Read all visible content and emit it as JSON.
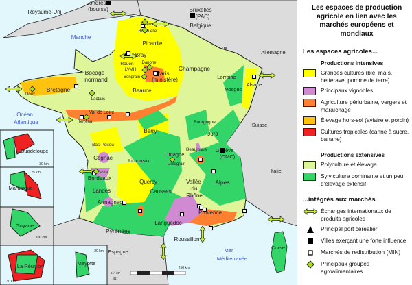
{
  "title": "Les espaces de production agricole en lien avec les marchés européens et mondiaux",
  "colors": {
    "sea": "#e2f7fb",
    "foreign_land": "#dcdcdc",
    "grandes_cultures": "#ffff00",
    "vignobles": "#d08ad2",
    "periurbaine": "#ff8030",
    "hors_sol": "#ffc20e",
    "tropicales": "#ee2222",
    "polyculture": "#dff59a",
    "sylviculture": "#33d468",
    "exchange_arrow": "#c8ef3a",
    "sea_label": "#3a55d0"
  },
  "legend": {
    "section1": "Les espaces agricoles...",
    "intensive_heading": "Productions intensives",
    "intensive": [
      {
        "label": "Grandes cultures (blé, maïs, betterave, pomme de terre)",
        "color": "#ffff00"
      },
      {
        "label": "Principaux vignobles",
        "color": "#d08ad2"
      },
      {
        "label": "Agriculture périurbaine, vergers et maraîchage",
        "color": "#ff8030"
      },
      {
        "label": "Élevage hors-sol (aviaire et porcin)",
        "color": "#ffc20e"
      },
      {
        "label": "Cultures tropicales (canne à sucre, banane)",
        "color": "#ee2222"
      }
    ],
    "extensive_heading": "Productions extensives",
    "extensive": [
      {
        "label": "Polyculture et élevage",
        "color": "#dff59a"
      },
      {
        "label": "Sylviculture dominante et un peu d'élevage extensif",
        "color": "#33d468"
      }
    ],
    "section2": "...intégrés aux marchés",
    "symbols": [
      {
        "icon": "double-arrow-icon",
        "label": "Échanges internationaux de produits agricoles"
      },
      {
        "icon": "triangle-icon",
        "label": "Principal port céréalier"
      },
      {
        "icon": "black-square-icon",
        "label": "Villes exerçant une forte influence"
      },
      {
        "icon": "white-square-icon",
        "label": "Marchés de redistribution (MIN)"
      },
      {
        "icon": "diamond-icon",
        "label": "Principaux groupes agroalimentaires"
      }
    ]
  },
  "map": {
    "countries": [
      "Royaume-Uni",
      "Belgique",
      "Lux",
      "Allemagne",
      "Suisse",
      "Italie",
      "Espagne"
    ],
    "seas": [
      "Manche",
      "Océan",
      "Atlantique",
      "Mer",
      "Méditerranée"
    ],
    "cities": [
      "Londres",
      "(bourse)",
      "Bruxelles",
      "(PAC)",
      "Paris",
      "(ministère)",
      "Rouen",
      "Genève",
      "(OMC)"
    ],
    "regions": [
      "Picardie",
      "Bray",
      "Champagne",
      "Bocage",
      "normand",
      "Bretagne",
      "Beauce",
      "Lorraine",
      "Vosges",
      "Alsace",
      "Val de Loire",
      "Berry",
      "Bourgogne",
      "Jura",
      "Bas-Poitou",
      "Cognac",
      "Limousin",
      "Bordeaux",
      "Landes",
      "Quercy",
      "Armagnac",
      "Limagne",
      "Beaujolais",
      "Vallée",
      "du",
      "Rhône",
      "Causses",
      "Alpes",
      "Provence",
      "Languedoc",
      "Roussillon",
      "Pyrénées",
      "Corse"
    ],
    "companies": [
      "Tereos",
      "Bonduelle",
      "Danone",
      "LVMH",
      "Bongrain",
      "Doux",
      "Lactalis",
      "Terrena",
      "Castel",
      "Limagrain"
    ],
    "overseas": [
      "Guadeloupe",
      "Martinique",
      "Guyane",
      "La Réunion",
      "Mayotte"
    ],
    "scales": [
      "250 km",
      "30 km",
      "25 km",
      "100 km",
      "20 km",
      "30 km"
    ],
    "latitudes": [
      "51° 30'",
      "41°"
    ]
  }
}
